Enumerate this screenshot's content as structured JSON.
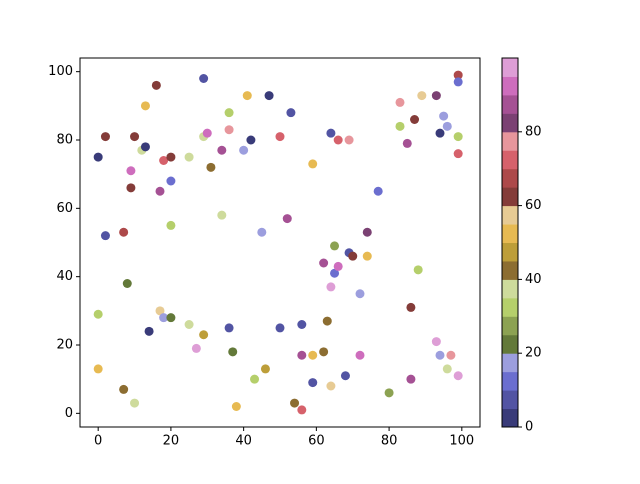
{
  "chart_data": {
    "type": "scatter",
    "x": [
      0,
      2,
      2,
      0,
      0,
      7,
      8,
      7,
      9,
      9,
      10,
      10,
      12,
      13,
      13,
      14,
      16,
      17,
      17,
      18,
      18,
      20,
      20,
      20,
      20,
      25,
      25,
      27,
      29,
      29,
      30,
      29,
      31,
      34,
      34,
      36,
      36,
      36,
      37,
      38,
      40,
      41,
      42,
      43,
      45,
      46,
      47,
      50,
      50,
      52,
      53,
      54,
      56,
      56,
      56,
      59,
      59,
      59,
      62,
      62,
      63,
      64,
      64,
      64,
      65,
      65,
      66,
      66,
      68,
      69,
      69,
      70,
      72,
      72,
      74,
      74,
      77,
      80,
      83,
      83,
      85,
      86,
      86,
      87,
      89,
      93,
      93,
      94,
      94,
      95,
      96,
      96,
      97,
      99,
      99,
      99,
      99,
      99,
      88
    ],
    "y": [
      75,
      81,
      52,
      29,
      13,
      53,
      38,
      7,
      71,
      66,
      81,
      3,
      77,
      78,
      90,
      24,
      96,
      65,
      30,
      74,
      28,
      75,
      68,
      55,
      28,
      75,
      26,
      19,
      98,
      81,
      82,
      23,
      72,
      77,
      58,
      88,
      83,
      25,
      18,
      2,
      77,
      93,
      80,
      10,
      53,
      13,
      93,
      81,
      25,
      57,
      88,
      3,
      26,
      17,
      1,
      73,
      17,
      9,
      44,
      18,
      27,
      82,
      37,
      8,
      49,
      41,
      80,
      43,
      11,
      80,
      47,
      46,
      35,
      17,
      53,
      46,
      65,
      6,
      91,
      84,
      79,
      31,
      10,
      86,
      93,
      93,
      21,
      82,
      17,
      87,
      84,
      13,
      17,
      99,
      97,
      81,
      76,
      11,
      42
    ],
    "c": [
      2,
      62,
      7,
      32,
      52,
      67,
      22,
      42,
      92,
      62,
      62,
      37,
      37,
      2,
      52,
      2,
      62,
      87,
      57,
      72,
      17,
      62,
      12,
      32,
      22,
      37,
      37,
      97,
      7,
      37,
      92,
      47,
      42,
      87,
      37,
      32,
      77,
      7,
      22,
      52,
      17,
      52,
      2,
      32,
      17,
      47,
      2,
      72,
      7,
      87,
      7,
      42,
      7,
      87,
      72,
      52,
      52,
      7,
      87,
      42,
      42,
      7,
      97,
      57,
      27,
      12,
      72,
      92,
      7,
      77,
      7,
      62,
      17,
      92,
      82,
      52,
      12,
      27,
      77,
      32,
      87,
      62,
      87,
      62,
      57,
      82,
      97,
      2,
      17,
      17,
      17,
      37,
      77,
      67,
      12,
      32,
      72,
      97,
      32
    ],
    "colormap": [
      "#393b79",
      "#5254a3",
      "#6b6ecf",
      "#9c9ede",
      "#637939",
      "#8ca252",
      "#b5cf6b",
      "#cedb9c",
      "#8c6d31",
      "#bd9e39",
      "#e7ba52",
      "#e7cb94",
      "#843c39",
      "#ad494a",
      "#d6616b",
      "#e7969c",
      "#7b4173",
      "#a55194",
      "#ce6dbd",
      "#de9ed6"
    ],
    "clim": [
      0,
      100
    ],
    "cticks": [
      0,
      20,
      40,
      60,
      80
    ],
    "xlim": [
      -5,
      105
    ],
    "xticks": [
      0,
      20,
      40,
      60,
      80,
      100
    ],
    "ylim": [
      -4,
      104
    ],
    "yticks": [
      0,
      20,
      40,
      60,
      80,
      100
    ]
  }
}
